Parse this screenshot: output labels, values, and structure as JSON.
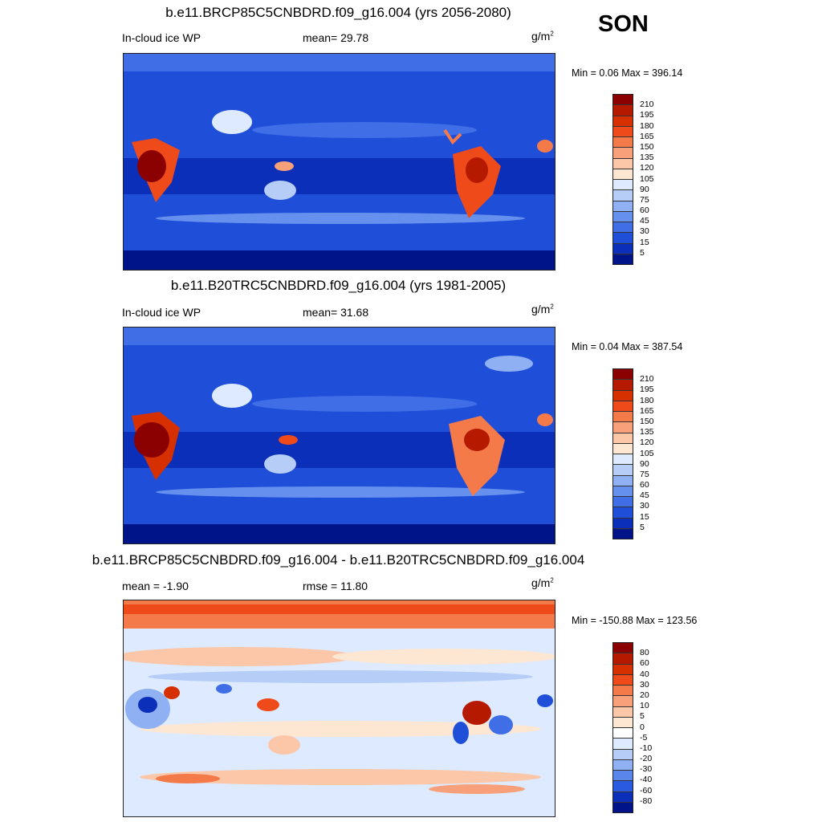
{
  "season": "SON",
  "panels": [
    {
      "title": "b.e11.BRCP85C5CNBDRD.f09_g16.004 (yrs 2056-2080)",
      "left_label": "In-cloud ice WP",
      "mid_label": "mean=  29.78",
      "units_base": "g/m",
      "units_exp": "2",
      "minmax": "Min =   0.06 Max = 396.14",
      "colorbar": {
        "levels": [
          "210",
          "195",
          "180",
          "165",
          "150",
          "135",
          "120",
          "105",
          "90",
          "75",
          "60",
          "45",
          "30",
          "15",
          "5"
        ],
        "colors": [
          "#8b0000",
          "#b51a00",
          "#d63000",
          "#ee4a1a",
          "#f57a4a",
          "#f8a07a",
          "#fbc7a8",
          "#fde7d2",
          "#ddeaff",
          "#b5cdf7",
          "#8fb0f2",
          "#6690ee",
          "#3f6ee6",
          "#1f4fd8",
          "#0b2fb8",
          "#00148a"
        ]
      }
    },
    {
      "title": "b.e11.B20TRC5CNBDRD.f09_g16.004 (yrs 1981-2005)",
      "left_label": "In-cloud ice WP",
      "mid_label": "mean=  31.68",
      "units_base": "g/m",
      "units_exp": "2",
      "minmax": "Min =   0.04 Max = 387.54",
      "colorbar": {
        "levels": [
          "210",
          "195",
          "180",
          "165",
          "150",
          "135",
          "120",
          "105",
          "90",
          "75",
          "60",
          "45",
          "30",
          "15",
          "5"
        ],
        "colors": [
          "#8b0000",
          "#b51a00",
          "#d63000",
          "#ee4a1a",
          "#f57a4a",
          "#f8a07a",
          "#fbc7a8",
          "#fde7d2",
          "#ddeaff",
          "#b5cdf7",
          "#8fb0f2",
          "#6690ee",
          "#3f6ee6",
          "#1f4fd8",
          "#0b2fb8",
          "#00148a"
        ]
      }
    },
    {
      "title": "b.e11.BRCP85C5CNBDRD.f09_g16.004 - b.e11.B20TRC5CNBDRD.f09_g16.004",
      "left_label": "mean =  -1.90",
      "mid_label": "rmse =  11.80",
      "units_base": "g/m",
      "units_exp": "2",
      "minmax": "Min = -150.88 Max = 123.56",
      "colorbar": {
        "levels": [
          "80",
          "60",
          "40",
          "30",
          "20",
          "10",
          "5",
          "0",
          "-5",
          "-10",
          "-20",
          "-30",
          "-40",
          "-60",
          "-80"
        ],
        "colors": [
          "#8b0000",
          "#b51a00",
          "#d63000",
          "#ee4a1a",
          "#f57a4a",
          "#f8a07a",
          "#fbc7a8",
          "#fde7d2",
          "#ffffff",
          "#ddeaff",
          "#b5cdf7",
          "#8fb0f2",
          "#5a85ea",
          "#2a5ae0",
          "#0b2fb8",
          "#00148a"
        ]
      }
    }
  ]
}
